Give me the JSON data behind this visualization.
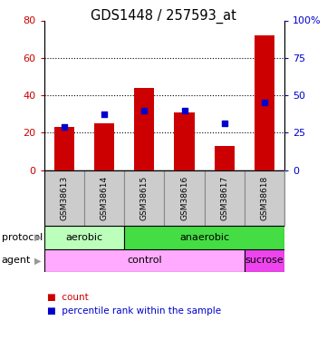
{
  "title": "GDS1448 / 257593_at",
  "samples": [
    "GSM38613",
    "GSM38614",
    "GSM38615",
    "GSM38616",
    "GSM38617",
    "GSM38618"
  ],
  "counts": [
    23,
    25,
    44,
    31,
    13,
    72
  ],
  "percentiles": [
    29,
    37,
    40,
    40,
    31,
    45
  ],
  "bar_color": "#cc0000",
  "dot_color": "#0000cc",
  "left_ylim": [
    0,
    80
  ],
  "right_ylim": [
    0,
    100
  ],
  "left_yticks": [
    0,
    20,
    40,
    60,
    80
  ],
  "right_yticks": [
    0,
    25,
    50,
    75,
    100
  ],
  "right_yticklabels": [
    "0",
    "25",
    "50",
    "75",
    "100%"
  ],
  "grid_values": [
    20,
    40,
    60
  ],
  "protocol_labels": [
    [
      "aerobic",
      0,
      2
    ],
    [
      "anaerobic",
      2,
      6
    ]
  ],
  "protocol_colors": [
    "#bbffbb",
    "#44dd44"
  ],
  "agent_labels": [
    [
      "control",
      0,
      5
    ],
    [
      "sucrose",
      5,
      6
    ]
  ],
  "agent_colors": [
    "#ffaaff",
    "#ee44ee"
  ],
  "background_color": "#ffffff",
  "tick_label_color_left": "#cc0000",
  "tick_label_color_right": "#0000cc",
  "gray_box_color": "#cccccc",
  "gray_box_edge": "#888888"
}
